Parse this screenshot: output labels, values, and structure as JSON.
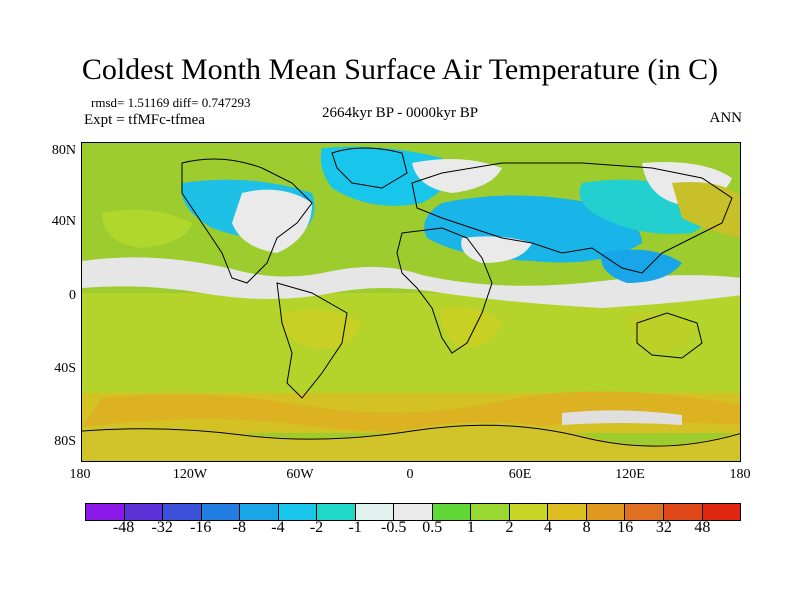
{
  "title": "Coldest Month Mean Surface Air Temperature (in C)",
  "stats": "rmsd= 1.51169 diff= 0.747293",
  "expt": "Expt = tfMFc-tfmea",
  "period": "2664kyr BP - 0000kyr BP",
  "season": "ANN",
  "lat_labels": [
    "80N",
    "40N",
    "0",
    "40S",
    "80S"
  ],
  "lon_labels": [
    "180",
    "120W",
    "60W",
    "0",
    "60E",
    "120E",
    "180"
  ],
  "colorbar": {
    "labels": [
      "-48",
      "-32",
      "-16",
      "-8",
      "-4",
      "-2",
      "-1",
      "-0.5",
      "0.5",
      "1",
      "2",
      "4",
      "8",
      "16",
      "32",
      "48"
    ],
    "colors": [
      "#8b1ae8",
      "#5a32d8",
      "#3a50d8",
      "#1f7ee0",
      "#19a6e8",
      "#18c6ec",
      "#20d8c8",
      "#dff2ee",
      "#eaeaea",
      "#60d838",
      "#98d830",
      "#c8d628",
      "#dcbe20",
      "#e09820",
      "#e07020",
      "#e04818",
      "#e02810"
    ]
  }
}
